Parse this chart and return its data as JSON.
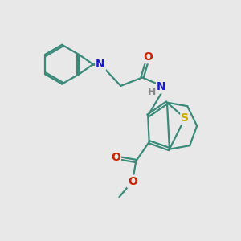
{
  "background_color": "#e8e8e8",
  "bond_color": "#3a8a7a",
  "bond_width": 1.6,
  "atom_colors": {
    "N": "#1a1acc",
    "O": "#cc2200",
    "S": "#ccaa00",
    "H": "#888888"
  },
  "font_size": 10,
  "fig_size": [
    3.0,
    3.0
  ],
  "dpi": 100
}
